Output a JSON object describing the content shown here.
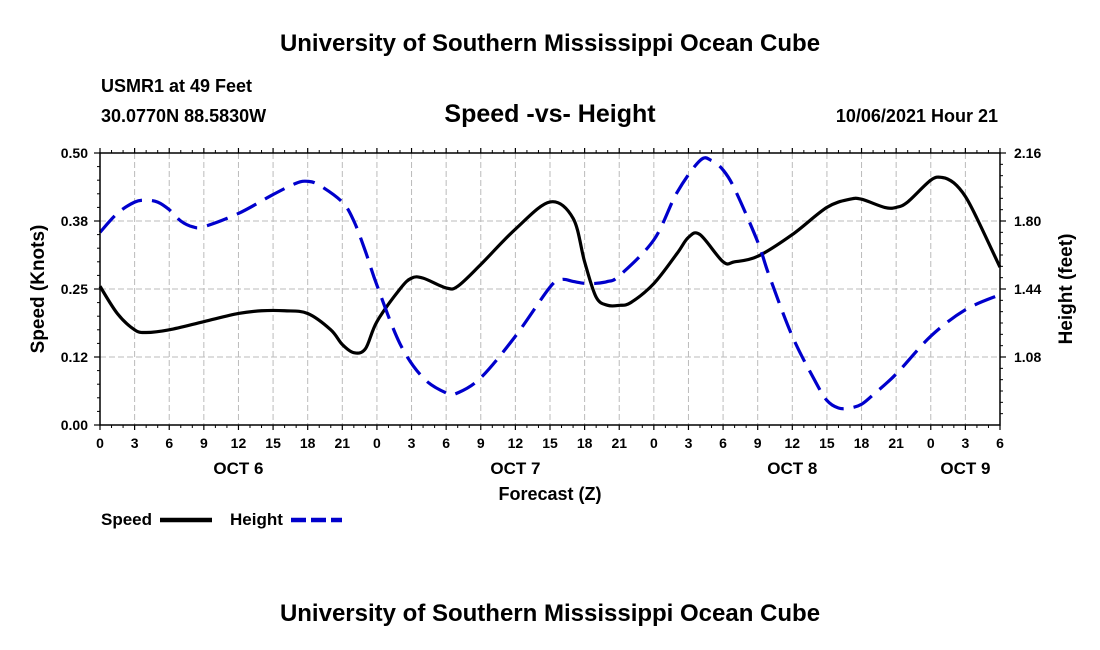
{
  "header": {
    "title": "University of Southern Mississippi Ocean Cube",
    "station": "USMR1 at 49 Feet",
    "location": "30.0770N  88.5830W",
    "datetime": "10/06/2021 Hour 21"
  },
  "footer": {
    "title": "University of Southern Mississippi Ocean Cube"
  },
  "legend": {
    "speed_label": "Speed",
    "height_label": "Height"
  },
  "colors": {
    "speed": "#000000",
    "height": "#0000cc",
    "grid": "#bbbbbb"
  },
  "chart_data": {
    "type": "line",
    "title": "Speed -vs- Height",
    "xlabel": "Forecast (Z)",
    "ylabel": "Speed (Knots)",
    "y2label": "Height (feet)",
    "x_unit": "hours since 10/06/2021 00Z",
    "xlim": [
      0,
      78
    ],
    "ylim": [
      0,
      0.5
    ],
    "y2lim": [
      0.72,
      2.16
    ],
    "xticks": [
      {
        "x": 0,
        "label": "0"
      },
      {
        "x": 3,
        "label": "3"
      },
      {
        "x": 6,
        "label": "6"
      },
      {
        "x": 9,
        "label": "9"
      },
      {
        "x": 12,
        "label": "12"
      },
      {
        "x": 15,
        "label": "15"
      },
      {
        "x": 18,
        "label": "18"
      },
      {
        "x": 21,
        "label": "21"
      },
      {
        "x": 24,
        "label": "0"
      },
      {
        "x": 27,
        "label": "3"
      },
      {
        "x": 30,
        "label": "6"
      },
      {
        "x": 33,
        "label": "9"
      },
      {
        "x": 36,
        "label": "12"
      },
      {
        "x": 39,
        "label": "15"
      },
      {
        "x": 42,
        "label": "18"
      },
      {
        "x": 45,
        "label": "21"
      },
      {
        "x": 48,
        "label": "0"
      },
      {
        "x": 51,
        "label": "3"
      },
      {
        "x": 54,
        "label": "6"
      },
      {
        "x": 57,
        "label": "9"
      },
      {
        "x": 60,
        "label": "12"
      },
      {
        "x": 63,
        "label": "15"
      },
      {
        "x": 66,
        "label": "18"
      },
      {
        "x": 69,
        "label": "21"
      },
      {
        "x": 72,
        "label": "0"
      },
      {
        "x": 75,
        "label": "3"
      },
      {
        "x": 78,
        "label": "6"
      }
    ],
    "day_labels": [
      {
        "x": 12,
        "label": "OCT 6"
      },
      {
        "x": 36,
        "label": "OCT 7"
      },
      {
        "x": 60,
        "label": "OCT 8"
      },
      {
        "x": 75,
        "label": "OCT 9"
      }
    ],
    "yticks": [
      {
        "value": 0.0,
        "label": "0.00"
      },
      {
        "value": 0.125,
        "label": "0.12"
      },
      {
        "value": 0.25,
        "label": "0.25"
      },
      {
        "value": 0.375,
        "label": "0.38"
      },
      {
        "value": 0.5,
        "label": "0.50"
      }
    ],
    "y2ticks": [
      {
        "value": 1.08,
        "label": "1.08"
      },
      {
        "value": 1.44,
        "label": "1.44"
      },
      {
        "value": 1.8,
        "label": "1.80"
      },
      {
        "value": 2.16,
        "label": "2.16"
      }
    ],
    "series": [
      {
        "name": "Speed",
        "axis": "left",
        "style": "solid",
        "x": [
          0,
          1.5,
          3,
          4,
          6,
          9,
          12,
          14,
          16,
          18,
          20,
          21,
          22,
          23,
          24,
          26,
          27,
          28,
          30,
          31,
          33,
          36,
          39,
          41,
          42,
          43,
          44,
          45,
          46,
          48,
          50,
          51,
          52,
          54,
          55,
          57,
          60,
          63,
          65,
          66,
          68,
          69,
          70,
          72,
          73,
          74,
          75,
          76,
          78
        ],
        "values": [
          0.255,
          0.205,
          0.175,
          0.17,
          0.175,
          0.19,
          0.205,
          0.21,
          0.21,
          0.205,
          0.175,
          0.148,
          0.133,
          0.14,
          0.19,
          0.25,
          0.27,
          0.27,
          0.252,
          0.255,
          0.295,
          0.36,
          0.41,
          0.38,
          0.3,
          0.235,
          0.22,
          0.22,
          0.225,
          0.26,
          0.315,
          0.345,
          0.35,
          0.3,
          0.3,
          0.31,
          0.35,
          0.4,
          0.415,
          0.415,
          0.4,
          0.4,
          0.41,
          0.45,
          0.455,
          0.445,
          0.42,
          0.38,
          0.29
        ]
      },
      {
        "name": "Height",
        "axis": "right",
        "style": "dashed",
        "x": [
          0,
          1.5,
          3,
          4,
          5,
          6,
          7,
          8,
          9,
          12,
          15,
          17,
          18,
          19,
          21,
          22,
          23,
          24,
          26,
          28,
          30,
          31,
          33,
          36,
          39,
          40,
          41,
          42,
          43,
          44,
          45,
          48,
          50,
          52,
          53,
          54,
          55,
          57,
          58,
          60,
          62,
          63,
          64,
          65,
          66,
          67,
          69,
          72,
          75,
          78
        ],
        "values": [
          1.74,
          1.84,
          1.9,
          1.91,
          1.9,
          1.86,
          1.8,
          1.77,
          1.77,
          1.84,
          1.94,
          2.0,
          2.01,
          1.99,
          1.9,
          1.8,
          1.64,
          1.46,
          1.15,
          0.97,
          0.89,
          0.89,
          0.97,
          1.19,
          1.45,
          1.49,
          1.48,
          1.47,
          1.47,
          1.48,
          1.51,
          1.7,
          1.95,
          2.12,
          2.12,
          2.07,
          1.97,
          1.69,
          1.51,
          1.19,
          0.95,
          0.85,
          0.81,
          0.81,
          0.83,
          0.88,
          0.99,
          1.19,
          1.33,
          1.41
        ]
      }
    ]
  }
}
